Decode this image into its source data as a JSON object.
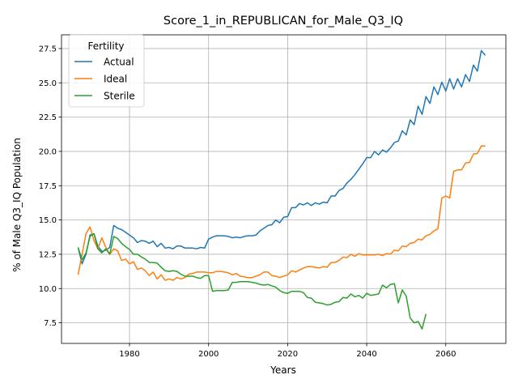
{
  "chart_data": {
    "type": "line",
    "title": "Score_1_in_REPUBLICAN_for_Male_Q3_IQ",
    "xlabel": "Years",
    "ylabel": "% of Male Q3_IQ Population",
    "xlim": [
      1962.8,
      2075.2
    ],
    "ylim": [
      6.0,
      28.5
    ],
    "xticks": [
      1980,
      2000,
      2020,
      2040,
      2060
    ],
    "yticks": [
      7.5,
      10.0,
      12.5,
      15.0,
      17.5,
      20.0,
      22.5,
      25.0,
      27.5
    ],
    "ytick_labels": [
      "7.5",
      "10.0",
      "12.5",
      "15.0",
      "17.5",
      "20.0",
      "22.5",
      "25.0",
      "27.5"
    ],
    "grid": true,
    "legend": {
      "title": "Fertility",
      "position": "top-left"
    },
    "series": [
      {
        "name": "Actual",
        "color": "#1f77b4",
        "x": [
          1967,
          1968,
          1969,
          1970,
          1971,
          1972,
          1973,
          1974,
          1975,
          1976,
          1977,
          1978,
          1979,
          1980,
          1981,
          1982,
          1983,
          1984,
          1985,
          1986,
          1987,
          1988,
          1989,
          1990,
          1991,
          1992,
          1993,
          1994,
          1995,
          1996,
          1997,
          1998,
          1999,
          2000,
          2001,
          2002,
          2003,
          2004,
          2005,
          2006,
          2007,
          2008,
          2009,
          2010,
          2011,
          2012,
          2013,
          2014,
          2015,
          2016,
          2017,
          2018,
          2019,
          2020,
          2021,
          2022,
          2023,
          2024,
          2025,
          2026,
          2027,
          2028,
          2029,
          2030,
          2031,
          2032,
          2033,
          2034,
          2035,
          2036,
          2037,
          2038,
          2039,
          2040,
          2041,
          2042,
          2043,
          2044,
          2045,
          2046,
          2047,
          2048,
          2049,
          2050,
          2051,
          2052,
          2053,
          2054,
          2055,
          2056,
          2057,
          2058,
          2059,
          2060,
          2061,
          2062,
          2063,
          2064,
          2065,
          2066,
          2067,
          2068,
          2069,
          2070
        ],
        "y": [
          13.0,
          11.8,
          12.5,
          13.9,
          14.0,
          13.1,
          12.7,
          12.8,
          13.0,
          14.6,
          14.4,
          14.3,
          14.1,
          13.9,
          13.7,
          13.35,
          13.5,
          13.45,
          13.3,
          13.45,
          13.05,
          13.3,
          12.95,
          13.0,
          12.9,
          13.1,
          13.1,
          12.95,
          12.95,
          12.95,
          12.9,
          13.0,
          12.95,
          13.6,
          13.75,
          13.85,
          13.85,
          13.85,
          13.8,
          13.7,
          13.75,
          13.7,
          13.8,
          13.85,
          13.85,
          13.9,
          14.2,
          14.4,
          14.6,
          14.65,
          15.0,
          14.8,
          15.2,
          15.25,
          15.9,
          15.9,
          16.2,
          16.1,
          16.25,
          16.05,
          16.25,
          16.15,
          16.3,
          16.25,
          16.75,
          16.75,
          17.15,
          17.3,
          17.7,
          17.95,
          18.3,
          18.7,
          19.1,
          19.55,
          19.55,
          20.0,
          19.75,
          20.1,
          19.95,
          20.25,
          20.65,
          20.75,
          21.5,
          21.2,
          22.3,
          21.95,
          23.3,
          22.7,
          24.0,
          23.5,
          24.7,
          24.15,
          25.05,
          24.4,
          25.3,
          24.55,
          25.3,
          24.7,
          25.6,
          25.1,
          26.3,
          25.85,
          27.35,
          27.0
        ]
      },
      {
        "name": "Ideal",
        "color": "#ff7f0e",
        "x": [
          1967,
          1968,
          1969,
          1970,
          1971,
          1972,
          1973,
          1974,
          1975,
          1976,
          1977,
          1978,
          1979,
          1980,
          1981,
          1982,
          1983,
          1984,
          1985,
          1986,
          1987,
          1988,
          1989,
          1990,
          1991,
          1992,
          1993,
          1994,
          1995,
          1996,
          1997,
          1998,
          1999,
          2000,
          2001,
          2002,
          2003,
          2004,
          2005,
          2006,
          2007,
          2008,
          2009,
          2010,
          2011,
          2012,
          2013,
          2014,
          2015,
          2016,
          2017,
          2018,
          2019,
          2020,
          2021,
          2022,
          2023,
          2024,
          2025,
          2026,
          2027,
          2028,
          2029,
          2030,
          2031,
          2032,
          2033,
          2034,
          2035,
          2036,
          2037,
          2038,
          2039,
          2040,
          2041,
          2042,
          2043,
          2044,
          2045,
          2046,
          2047,
          2048,
          2049,
          2050,
          2051,
          2052,
          2053,
          2054,
          2055,
          2056,
          2057,
          2058,
          2059,
          2060,
          2061,
          2062,
          2063,
          2064,
          2065,
          2066,
          2067,
          2068,
          2069,
          2070
        ],
        "y": [
          11.0,
          12.5,
          14.0,
          14.5,
          13.5,
          12.9,
          13.7,
          13.0,
          12.5,
          12.9,
          12.75,
          12.05,
          12.15,
          11.8,
          11.95,
          11.4,
          11.5,
          11.3,
          10.95,
          11.2,
          10.7,
          11.0,
          10.6,
          10.7,
          10.6,
          10.8,
          10.7,
          10.8,
          11.05,
          11.1,
          11.2,
          11.2,
          11.2,
          11.15,
          11.15,
          11.25,
          11.25,
          11.2,
          11.15,
          11.0,
          11.1,
          10.9,
          10.85,
          10.8,
          10.8,
          10.9,
          11.0,
          11.2,
          11.2,
          10.95,
          10.9,
          10.8,
          10.9,
          11.0,
          11.3,
          11.2,
          11.35,
          11.5,
          11.6,
          11.6,
          11.55,
          11.5,
          11.6,
          11.55,
          11.9,
          11.9,
          12.05,
          12.3,
          12.25,
          12.5,
          12.35,
          12.55,
          12.45,
          12.45,
          12.45,
          12.45,
          12.5,
          12.4,
          12.55,
          12.5,
          12.8,
          12.75,
          13.1,
          13.05,
          13.3,
          13.35,
          13.6,
          13.55,
          13.85,
          13.95,
          14.2,
          14.35,
          16.6,
          16.75,
          16.6,
          18.55,
          18.65,
          18.65,
          19.15,
          19.2,
          19.8,
          19.85,
          20.4,
          20.4
        ]
      },
      {
        "name": "Sterile",
        "color": "#2ca02c",
        "x": [
          1967,
          1968,
          1969,
          1970,
          1971,
          1972,
          1973,
          1974,
          1975,
          1976,
          1977,
          1978,
          1979,
          1980,
          1981,
          1982,
          1983,
          1984,
          1985,
          1986,
          1987,
          1988,
          1989,
          1990,
          1991,
          1992,
          1993,
          1994,
          1995,
          1996,
          1997,
          1998,
          1999,
          2000,
          2001,
          2002,
          2003,
          2004,
          2005,
          2006,
          2007,
          2008,
          2009,
          2010,
          2011,
          2012,
          2013,
          2014,
          2015,
          2016,
          2017,
          2018,
          2019,
          2020,
          2021,
          2022,
          2023,
          2024,
          2025,
          2026,
          2027,
          2028,
          2029,
          2030,
          2031,
          2032,
          2033,
          2034,
          2035,
          2036,
          2037,
          2038,
          2039,
          2040,
          2041,
          2042,
          2043,
          2044,
          2045,
          2046,
          2047,
          2048,
          2049,
          2050,
          2051,
          2052,
          2053,
          2054,
          2055
        ],
        "y": [
          13.0,
          12.1,
          12.6,
          13.8,
          14.0,
          12.9,
          12.6,
          12.9,
          12.5,
          13.8,
          13.65,
          13.3,
          13.05,
          12.85,
          12.5,
          12.5,
          12.3,
          12.15,
          11.9,
          11.9,
          11.85,
          11.55,
          11.3,
          11.25,
          11.3,
          11.25,
          11.05,
          10.9,
          10.9,
          10.9,
          10.8,
          10.75,
          10.95,
          10.95,
          9.8,
          9.85,
          9.85,
          9.85,
          9.9,
          10.45,
          10.45,
          10.5,
          10.5,
          10.5,
          10.45,
          10.4,
          10.3,
          10.25,
          10.3,
          10.2,
          10.1,
          9.85,
          9.7,
          9.65,
          9.8,
          9.8,
          9.8,
          9.7,
          9.35,
          9.3,
          9.0,
          8.95,
          8.9,
          8.8,
          8.85,
          9.0,
          9.05,
          9.35,
          9.3,
          9.6,
          9.4,
          9.5,
          9.3,
          9.65,
          9.5,
          9.55,
          9.6,
          10.25,
          10.05,
          10.3,
          10.35,
          8.95,
          9.9,
          9.45,
          7.85,
          7.5,
          7.6,
          7.05,
          8.15
        ]
      }
    ]
  }
}
